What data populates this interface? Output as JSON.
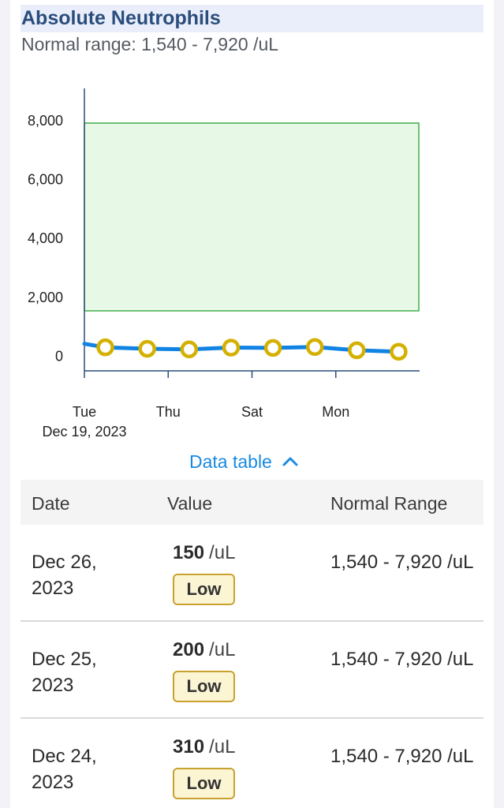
{
  "header": {
    "title": "Absolute Neutrophils",
    "subtitle_label": "Normal range:",
    "subtitle_value": "1,540 - 7,920 /uL"
  },
  "chart_data": {
    "type": "line",
    "title": "",
    "xlabel": "",
    "ylabel": "",
    "x_tick_labels": [
      "Tue",
      "Thu",
      "Sat",
      "Mon"
    ],
    "x_sub_label": "Dec 19, 2023",
    "x_ticks_dates": [
      "2023-12-19",
      "2023-12-21",
      "2023-12-23",
      "2023-12-25"
    ],
    "y_ticks": [
      0,
      2000,
      4000,
      6000,
      8000
    ],
    "y_tick_labels": [
      "0",
      "2,000",
      "4,000",
      "6,000",
      "8,000"
    ],
    "xlim": [
      "2023-12-19",
      "2023-12-27"
    ],
    "ylim": [
      -500,
      9100
    ],
    "normal_range": {
      "low": 1540,
      "high": 7920,
      "fill": "#e8f8e6",
      "stroke": "#3fae4a"
    },
    "line_color": "#1183e3",
    "marker_fill": "#ffffff",
    "marker_stroke": "#d4b000",
    "series": [
      {
        "points": [
          {
            "x": "2023-12-19",
            "y": 420,
            "marker": false
          },
          {
            "x": "2023-12-19T12:00",
            "y": 300,
            "marker": true
          },
          {
            "x": "2023-12-20T12:00",
            "y": 250,
            "marker": true
          },
          {
            "x": "2023-12-21T12:00",
            "y": 230,
            "marker": true
          },
          {
            "x": "2023-12-22T12:00",
            "y": 290,
            "marker": true
          },
          {
            "x": "2023-12-23T12:00",
            "y": 280,
            "marker": true
          },
          {
            "x": "2023-12-24T12:00",
            "y": 310,
            "marker": true
          },
          {
            "x": "2023-12-25T12:00",
            "y": 200,
            "marker": true
          },
          {
            "x": "2023-12-26T12:00",
            "y": 150,
            "marker": true
          }
        ]
      }
    ],
    "grid": false
  },
  "toggle": {
    "label": "Data table"
  },
  "table": {
    "headers": {
      "date": "Date",
      "value": "Value",
      "range": "Normal Range"
    },
    "rows": [
      {
        "date": "Dec 26, 2023",
        "value": "150",
        "unit": "/uL",
        "flag": "Low",
        "range": "1,540 - 7,920 /uL"
      },
      {
        "date": "Dec 25, 2023",
        "value": "200",
        "unit": "/uL",
        "flag": "Low",
        "range": "1,540 - 7,920 /uL"
      },
      {
        "date": "Dec 24, 2023",
        "value": "310",
        "unit": "/uL",
        "flag": "Low",
        "range": "1,540 - 7,920 /uL"
      }
    ]
  }
}
